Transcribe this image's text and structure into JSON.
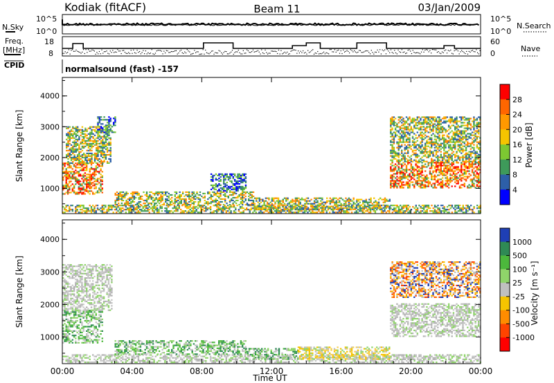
{
  "header": {
    "station": "Kodiak (fitACF)",
    "beam": "Beam 11",
    "date": "03/Jan/2009"
  },
  "aux_panels": {
    "nsky": {
      "label": "N.Sky",
      "tick_top": "10^5",
      "tick_bottom": "10^0",
      "right_label": "N.Search",
      "right_tick_top": "10^5",
      "right_tick_bottom": "10^0"
    },
    "freq": {
      "label_line1": "Freq.",
      "label_line2": "[MHz]",
      "tick_top": "18",
      "tick_bottom": "8",
      "right_label": "Nave",
      "right_tick_top": "60",
      "right_tick_bottom": "0"
    },
    "cpid": {
      "label": "CPID",
      "text": "normalsound (fast) -157"
    }
  },
  "colorbars": {
    "power": {
      "label": "Power [dB]",
      "ticks": [
        "28",
        "24",
        "20",
        "16",
        "12",
        "8",
        "4"
      ],
      "colors": [
        "#ff0000",
        "#ff6600",
        "#ff9900",
        "#f5c400",
        "#7dc832",
        "#3e9a5a",
        "#2d5fa8",
        "#0000ff"
      ]
    },
    "velocity": {
      "label": "Velocity [m s⁻¹]",
      "ticks": [
        "1000",
        "500",
        "100",
        "25",
        "-25",
        "-100",
        "-500",
        "-1000"
      ],
      "colors": [
        "#1f3fb4",
        "#2f8a55",
        "#4cb83c",
        "#8fd46a",
        "#c0c0c0",
        "#f5c400",
        "#ff8c00",
        "#ff4400",
        "#ff0000"
      ]
    }
  },
  "chart_data": [
    {
      "type": "heatmap",
      "name": "power",
      "ylabel": "Slant Range [km]",
      "xlabel": "",
      "y_ticks": [
        "1000",
        "2000",
        "3000",
        "4000"
      ],
      "ylim": [
        180,
        4600
      ],
      "x_range_hours": [
        0,
        24
      ],
      "regions": [
        {
          "t0": 0.0,
          "t1": 2.3,
          "r0": 800,
          "r1": 1800,
          "level": "high"
        },
        {
          "t0": 0.2,
          "t1": 2.8,
          "r0": 1800,
          "r1": 3000,
          "level": "mid"
        },
        {
          "t0": 2.0,
          "t1": 3.0,
          "r0": 2800,
          "r1": 3300,
          "level": "low"
        },
        {
          "t0": 0.0,
          "t1": 24.0,
          "r0": 200,
          "r1": 450,
          "level": "mid"
        },
        {
          "t0": 3.0,
          "t1": 11.0,
          "r0": 450,
          "r1": 900,
          "level": "mid"
        },
        {
          "t0": 8.5,
          "t1": 10.5,
          "r0": 900,
          "r1": 1450,
          "level": "low"
        },
        {
          "t0": 11.0,
          "t1": 18.8,
          "r0": 300,
          "r1": 700,
          "level": "mid"
        },
        {
          "t0": 18.8,
          "t1": 24.0,
          "r0": 1000,
          "r1": 1850,
          "level": "high"
        },
        {
          "t0": 18.8,
          "t1": 24.0,
          "r0": 1850,
          "r1": 3300,
          "level": "mid"
        }
      ]
    },
    {
      "type": "heatmap",
      "name": "velocity",
      "ylabel": "Slant Range [km]",
      "xlabel": "Time UT",
      "y_ticks": [
        "1000",
        "2000",
        "3000",
        "4000"
      ],
      "ylim": [
        180,
        4600
      ],
      "x_ticks": [
        "00:00",
        "04:00",
        "08:00",
        "12:00",
        "16:00",
        "20:00",
        "00:00"
      ],
      "x_range_hours": [
        0,
        24
      ],
      "regions": [
        {
          "t0": 0.0,
          "t1": 2.3,
          "r0": 800,
          "r1": 1800,
          "level": "green"
        },
        {
          "t0": 0.0,
          "t1": 2.8,
          "r0": 1800,
          "r1": 3200,
          "level": "grey"
        },
        {
          "t0": 0.0,
          "t1": 24.0,
          "r0": 200,
          "r1": 450,
          "level": "grey"
        },
        {
          "t0": 3.0,
          "t1": 10.5,
          "r0": 450,
          "r1": 900,
          "level": "green"
        },
        {
          "t0": 10.5,
          "t1": 13.5,
          "r0": 300,
          "r1": 650,
          "level": "green"
        },
        {
          "t0": 13.5,
          "t1": 18.8,
          "r0": 300,
          "r1": 700,
          "level": "yellow"
        },
        {
          "t0": 18.8,
          "t1": 24.0,
          "r0": 1000,
          "r1": 2000,
          "level": "grey"
        },
        {
          "t0": 18.8,
          "t1": 24.0,
          "r0": 2200,
          "r1": 3300,
          "level": "orange"
        }
      ]
    }
  ]
}
